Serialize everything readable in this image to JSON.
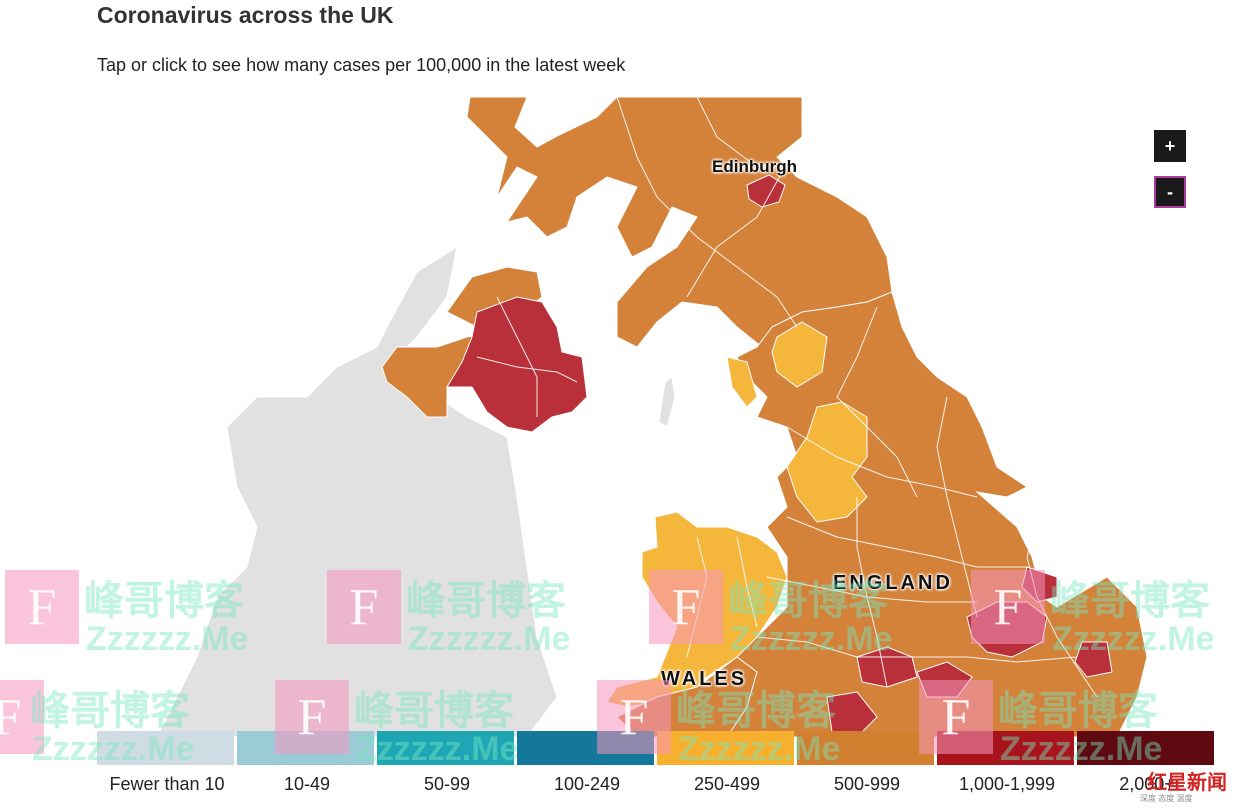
{
  "header": {
    "title": "Coronavirus across the UK",
    "subtitle": "Tap or click to see how many cases per 100,000 in the latest week"
  },
  "controls": {
    "zoom_in_label": "+",
    "zoom_out_label": "-"
  },
  "places": {
    "edinburgh": "Edinburgh",
    "england": "ENGLAND",
    "wales": "WALES"
  },
  "legend": [
    {
      "label": "Fewer than 10",
      "color": "#d0dce3"
    },
    {
      "label": "10-49",
      "color": "#9ccbd8"
    },
    {
      "label": "50-99",
      "color": "#1fa6b5"
    },
    {
      "label": "100-249",
      "color": "#13789a"
    },
    {
      "label": "250-499",
      "color": "#f7b02e"
    },
    {
      "label": "500-999",
      "color": "#d0802f"
    },
    {
      "label": "1,000-1,999",
      "color": "#a8141c"
    },
    {
      "label": "2,000+",
      "color": "#5e0a10"
    }
  ],
  "map_colors": {
    "no_data": "#e1e1e1",
    "band_250_499": "#f5b63c",
    "band_500_999": "#d4823a",
    "band_1000_1999": "#b9303a"
  },
  "watermark": {
    "logo_letter": "F",
    "name": "峰哥博客",
    "site": "Zzzzzz.Me",
    "corner_logo": "红星新闻",
    "corner_sub": "深度 态度 温度"
  }
}
